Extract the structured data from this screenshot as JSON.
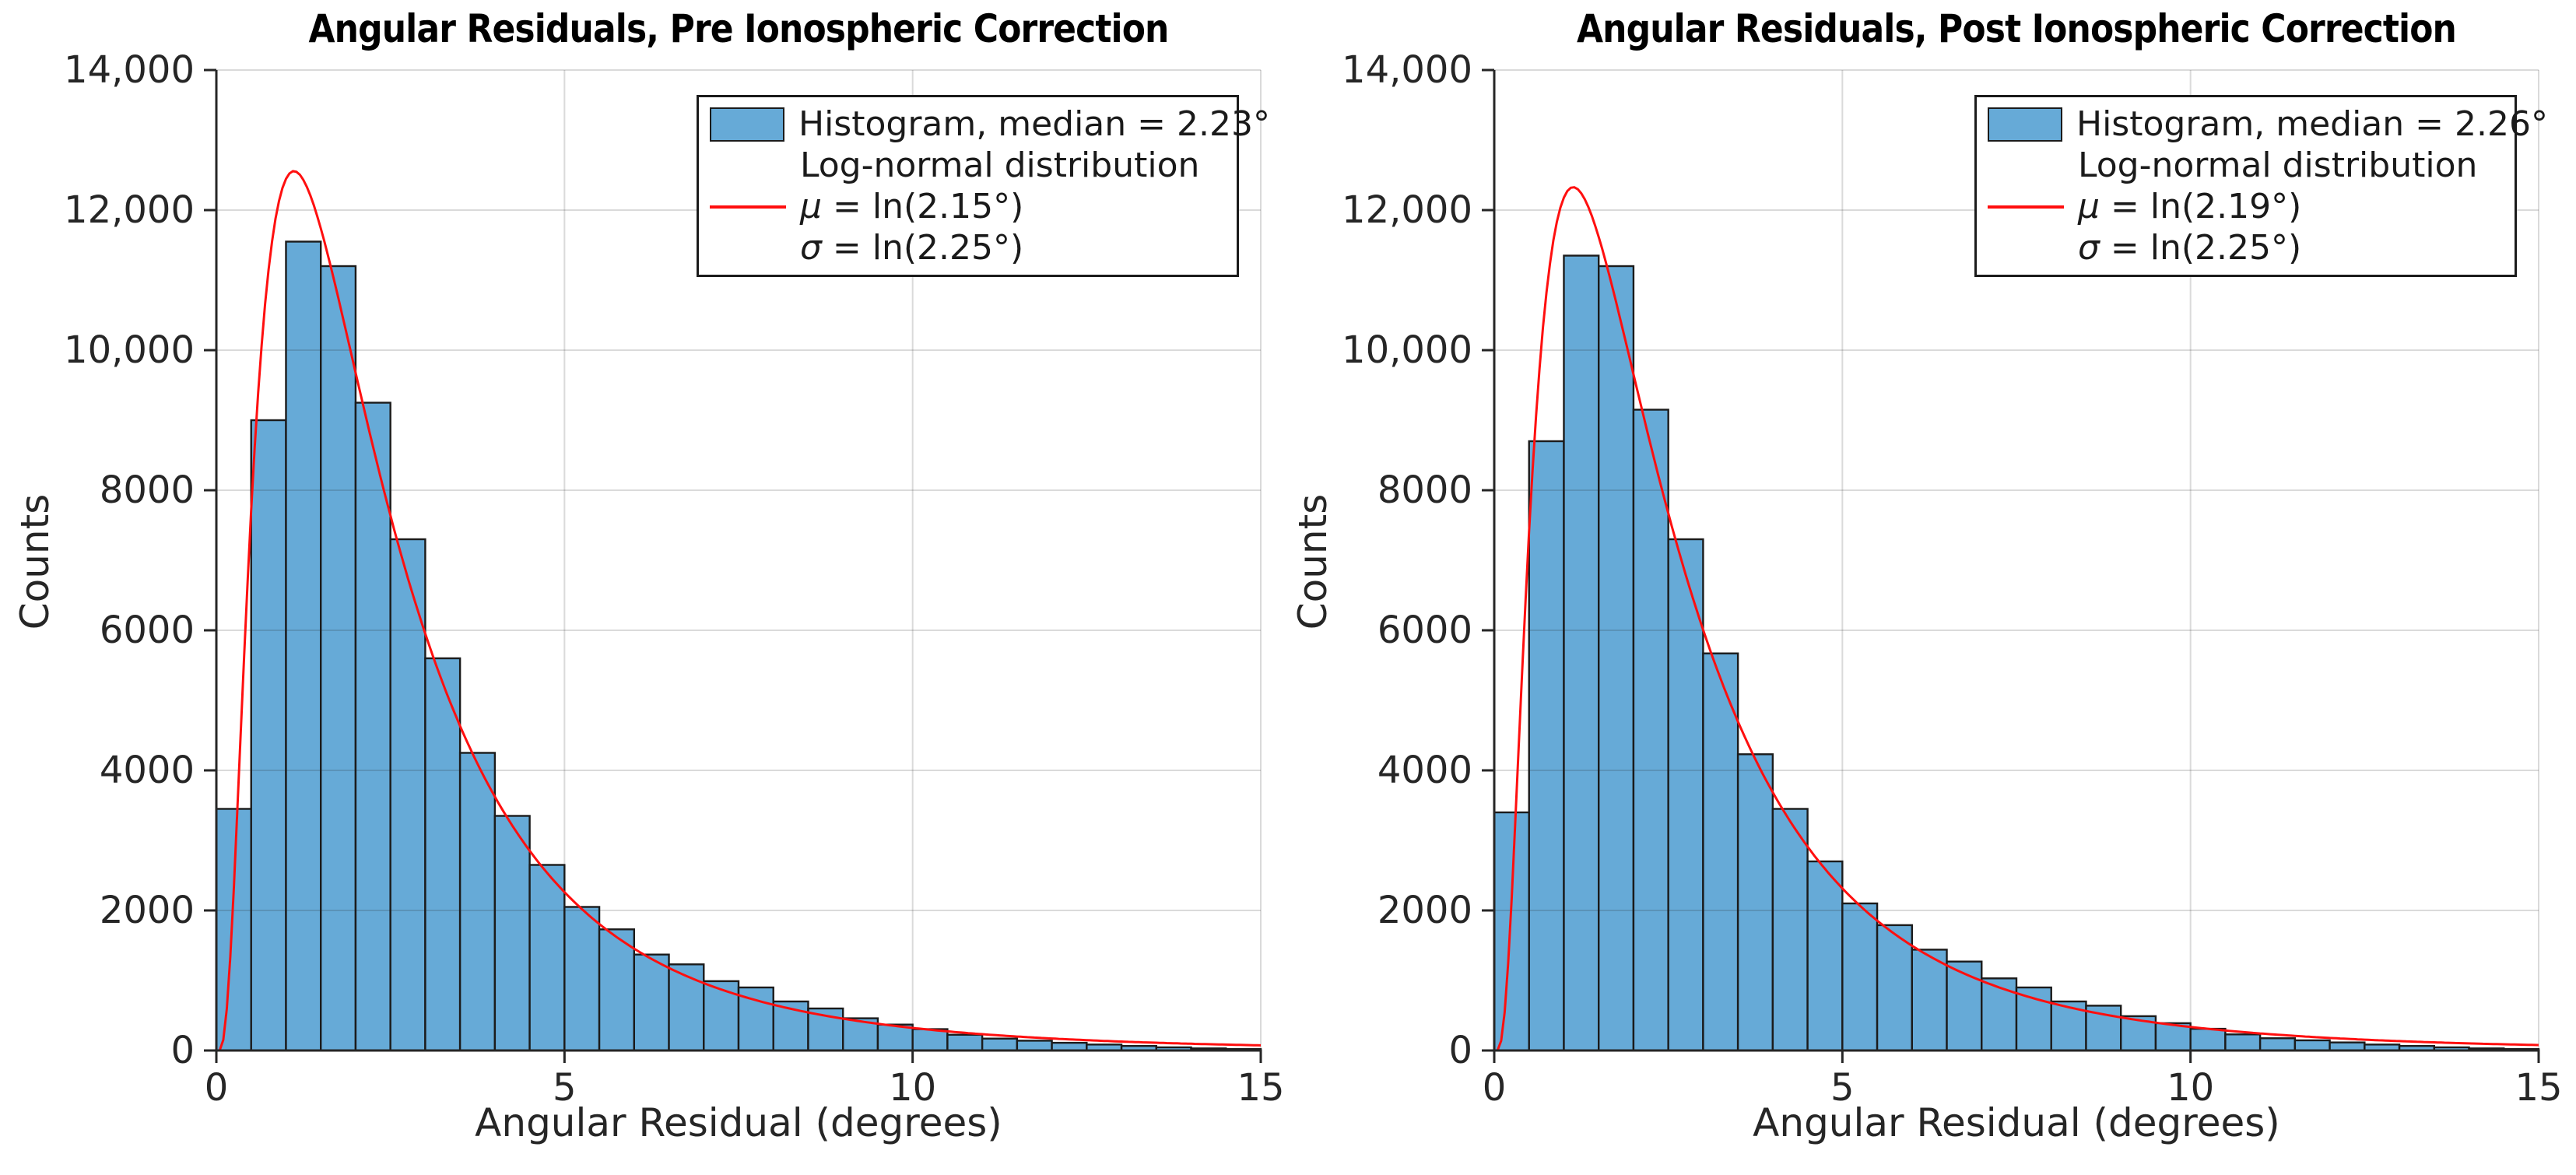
{
  "styles": {
    "background": "#ffffff",
    "bar_fill": "#66aad7",
    "bar_edge": "#1b1b1b",
    "fit_color": "#ff0f0f",
    "grid_color": "rgba(38,38,38,0.17)",
    "axis_color": "#262626",
    "text_color": "#262626",
    "legend_border": "#1b1b1b",
    "legend_bg": "#ffffff"
  },
  "chart_data": [
    {
      "type": "histogram",
      "title": "Angular Residuals, Pre Ionospheric Correction",
      "xlabel": "Angular Residual (degrees)",
      "ylabel": "Counts",
      "xlim": [
        0,
        15
      ],
      "ylim": [
        0,
        14000
      ],
      "grid": true,
      "x_ticks": [
        {
          "v": 0,
          "label": "0"
        },
        {
          "v": 5,
          "label": "5"
        },
        {
          "v": 10,
          "label": "10"
        },
        {
          "v": 15,
          "label": "15"
        }
      ],
      "y_ticks": [
        {
          "v": 0,
          "label": "0"
        },
        {
          "v": 2000,
          "label": "2000"
        },
        {
          "v": 4000,
          "label": "4000"
        },
        {
          "v": 6000,
          "label": "6000"
        },
        {
          "v": 8000,
          "label": "8000"
        },
        {
          "v": 10000,
          "label": "10,000"
        },
        {
          "v": 12000,
          "label": "12,000"
        },
        {
          "v": 14000,
          "label": "14,000"
        }
      ],
      "bins": {
        "start": 0,
        "width": 0.5,
        "counts": [
          3450,
          9000,
          11550,
          11200,
          9250,
          7300,
          5600,
          4250,
          3350,
          2650,
          2050,
          1730,
          1370,
          1230,
          990,
          900,
          700,
          600,
          460,
          370,
          305,
          225,
          170,
          140,
          110,
          85,
          65,
          45,
          30,
          20
        ]
      },
      "median_deg": 2.23,
      "fit": {
        "type": "log-normal",
        "mu_expr": "ln(2.15°)",
        "sigma_expr": "ln(2.25°)",
        "median_deg": 2.15,
        "sigma_deg": 2.25,
        "peak_counts": 12550,
        "scale": 39500
      },
      "legend_rows": [
        {
          "symbol": "patch",
          "text": "Histogram, median = 2.23°"
        },
        {
          "symbol": "none",
          "text": "Log-normal distribution"
        },
        {
          "symbol": "line",
          "text": "μ = ln(2.15°)"
        },
        {
          "symbol": "none",
          "text": "σ = ln(2.25°)"
        }
      ]
    },
    {
      "type": "histogram",
      "title": "Angular Residuals, Post Ionospheric Correction",
      "xlabel": "Angular Residual (degrees)",
      "ylabel": "Counts",
      "xlim": [
        0,
        15
      ],
      "ylim": [
        0,
        14000
      ],
      "grid": true,
      "x_ticks": [
        {
          "v": 0,
          "label": "0"
        },
        {
          "v": 5,
          "label": "5"
        },
        {
          "v": 10,
          "label": "10"
        },
        {
          "v": 15,
          "label": "15"
        }
      ],
      "y_ticks": [
        {
          "v": 0,
          "label": "0"
        },
        {
          "v": 2000,
          "label": "2000"
        },
        {
          "v": 4000,
          "label": "4000"
        },
        {
          "v": 6000,
          "label": "6000"
        },
        {
          "v": 8000,
          "label": "8000"
        },
        {
          "v": 10000,
          "label": "10,000"
        },
        {
          "v": 12000,
          "label": "12,000"
        },
        {
          "v": 14000,
          "label": "14,000"
        }
      ],
      "bins": {
        "start": 0,
        "width": 0.5,
        "counts": [
          3400,
          8700,
          11350,
          11200,
          9150,
          7300,
          5670,
          4230,
          3450,
          2700,
          2100,
          1790,
          1440,
          1270,
          1030,
          900,
          700,
          640,
          490,
          390,
          310,
          230,
          175,
          145,
          115,
          85,
          65,
          45,
          30,
          20
        ]
      },
      "median_deg": 2.26,
      "fit": {
        "type": "log-normal",
        "mu_expr": "ln(2.19°)",
        "sigma_expr": "ln(2.25°)",
        "median_deg": 2.19,
        "sigma_deg": 2.25,
        "peak_counts": 12330,
        "scale": 39500
      },
      "legend_rows": [
        {
          "symbol": "patch",
          "text": "Histogram, median = 2.26°"
        },
        {
          "symbol": "none",
          "text": "Log-normal distribution"
        },
        {
          "symbol": "line",
          "text": "μ = ln(2.19°)"
        },
        {
          "symbol": "none",
          "text": "σ = ln(2.25°)"
        }
      ]
    }
  ]
}
